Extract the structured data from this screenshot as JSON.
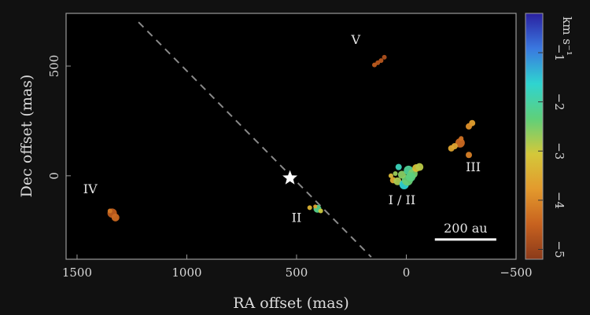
{
  "chart_data": {
    "type": "scatter",
    "title": "",
    "xlabel": "RA offset (mas)",
    "ylabel": "Dec offset (mas)",
    "xlim": [
      1550,
      -500
    ],
    "ylim": [
      -380,
      740
    ],
    "x_reversed": true,
    "xticks": [
      1500,
      1000,
      500,
      0,
      -500
    ],
    "yticks": [
      0,
      500
    ],
    "xtick_labels": [
      "1500",
      "1000",
      "500",
      "0",
      "−500"
    ],
    "ytick_labels": [
      "0",
      "500"
    ],
    "grid": false,
    "background": "#000000",
    "colorbar": {
      "label": "km s⁻¹",
      "min": -5.2,
      "max": -0.2,
      "ticks": [
        -1,
        -2,
        -3,
        -4,
        -5
      ],
      "tick_labels": [
        "−1",
        "−2",
        "−3",
        "−4",
        "−5"
      ],
      "colormap": [
        "#8b3a1a",
        "#c8621f",
        "#e39a2d",
        "#d4c83a",
        "#5fd07a",
        "#2fd4d0",
        "#3a78e0",
        "#2a20a0"
      ]
    },
    "star": {
      "name": "star",
      "x": 530,
      "y": -10
    },
    "dashed_line": {
      "x": [
        1220,
        160
      ],
      "y": [
        700,
        -370
      ]
    },
    "scale_bar": {
      "label": "200 au",
      "x": [
        -130,
        -410
      ],
      "y": -290
    },
    "annotations": [
      {
        "text": "V",
        "x": 230,
        "y": 600
      },
      {
        "text": "III",
        "x": -305,
        "y": 20
      },
      {
        "text": "IV",
        "x": 1440,
        "y": -80
      },
      {
        "text": "II",
        "x": 500,
        "y": -210
      },
      {
        "text": "I / II",
        "x": 20,
        "y": -130
      }
    ],
    "series": [
      {
        "name": "V",
        "points": [
          {
            "x": 100,
            "y": 540,
            "v": -4.8,
            "s": 3
          },
          {
            "x": 115,
            "y": 525,
            "v": -4.7,
            "s": 3
          },
          {
            "x": 130,
            "y": 515,
            "v": -4.7,
            "s": 3
          },
          {
            "x": 145,
            "y": 505,
            "v": -4.6,
            "s": 3
          }
        ]
      },
      {
        "name": "III",
        "points": [
          {
            "x": -300,
            "y": 240,
            "v": -3.7,
            "s": 4
          },
          {
            "x": -285,
            "y": 225,
            "v": -3.9,
            "s": 4
          },
          {
            "x": -245,
            "y": 150,
            "v": -4.4,
            "s": 6
          },
          {
            "x": -205,
            "y": 125,
            "v": -3.6,
            "s": 4
          },
          {
            "x": -220,
            "y": 135,
            "v": -3.6,
            "s": 4
          },
          {
            "x": -285,
            "y": 95,
            "v": -4.1,
            "s": 4
          },
          {
            "x": -250,
            "y": 170,
            "v": -4.3,
            "s": 3
          }
        ]
      },
      {
        "name": "IV",
        "points": [
          {
            "x": 1340,
            "y": -170,
            "v": -4.6,
            "s": 6
          },
          {
            "x": 1325,
            "y": -190,
            "v": -4.4,
            "s": 5
          },
          {
            "x": 1350,
            "y": -160,
            "v": -4.2,
            "s": 3
          }
        ]
      },
      {
        "name": "II",
        "points": [
          {
            "x": 440,
            "y": -145,
            "v": -3.4,
            "s": 3
          },
          {
            "x": 405,
            "y": -150,
            "v": -2.2,
            "s": 5
          },
          {
            "x": 390,
            "y": -160,
            "v": -3.0,
            "s": 3
          },
          {
            "x": 415,
            "y": -140,
            "v": -3.6,
            "s": 2.5
          }
        ]
      },
      {
        "name": "I / II",
        "points": [
          {
            "x": 60,
            "y": -20,
            "v": -3.5,
            "s": 4
          },
          {
            "x": 40,
            "y": -25,
            "v": -2.8,
            "s": 5
          },
          {
            "x": 10,
            "y": -40,
            "v": -1.6,
            "s": 6
          },
          {
            "x": -5,
            "y": -20,
            "v": -2.4,
            "s": 7
          },
          {
            "x": 20,
            "y": 5,
            "v": -2.6,
            "s": 5
          },
          {
            "x": 35,
            "y": 40,
            "v": -1.8,
            "s": 4
          },
          {
            "x": -10,
            "y": 25,
            "v": -2.1,
            "s": 6
          },
          {
            "x": -30,
            "y": 10,
            "v": -2.5,
            "s": 6
          },
          {
            "x": -45,
            "y": 35,
            "v": -3.2,
            "s": 5
          },
          {
            "x": -60,
            "y": 40,
            "v": -2.9,
            "s": 5
          },
          {
            "x": -20,
            "y": -5,
            "v": -2.3,
            "s": 6
          },
          {
            "x": 50,
            "y": 10,
            "v": -2.7,
            "s": 3
          },
          {
            "x": 70,
            "y": 0,
            "v": -3.3,
            "s": 3
          }
        ]
      }
    ]
  }
}
